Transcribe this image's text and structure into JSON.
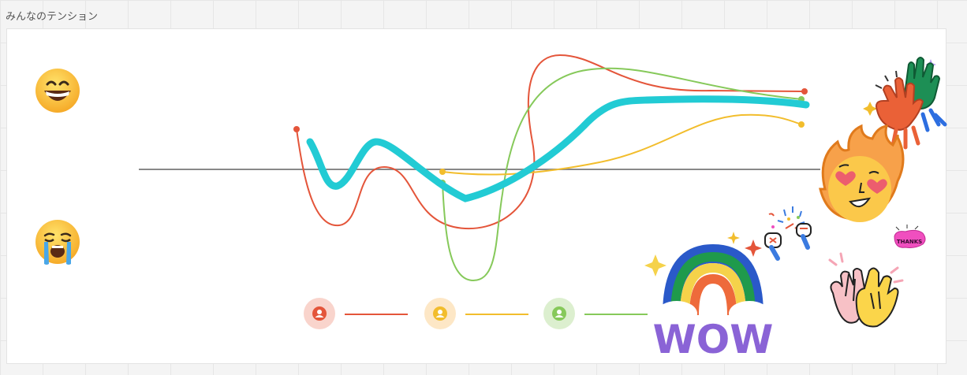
{
  "frame": {
    "title": "みんなのテンション"
  },
  "emojis": {
    "happy": "grinning-face-emoji",
    "sad": "crying-face-emoji"
  },
  "colors": {
    "red": "#e4553a",
    "orange": "#f2bd2c",
    "green": "#86c95a",
    "teal": "#22cbd4",
    "baseline": "#888888"
  },
  "legend": [
    {
      "icon": "user-icon",
      "color": "#e4553a"
    },
    {
      "icon": "user-icon",
      "color": "#f2bd2c"
    },
    {
      "icon": "user-icon",
      "color": "#86c95a"
    }
  ],
  "stickers": [
    {
      "name": "high-five-hands-sticker"
    },
    {
      "name": "fire-heart-eyes-sticker"
    },
    {
      "name": "thanks-sticker",
      "text": "THANKS"
    },
    {
      "name": "cheering-hands-sticker"
    },
    {
      "name": "wow-rainbow-sticker",
      "text": "WOW"
    },
    {
      "name": "clapping-hands-sticker"
    }
  ]
}
